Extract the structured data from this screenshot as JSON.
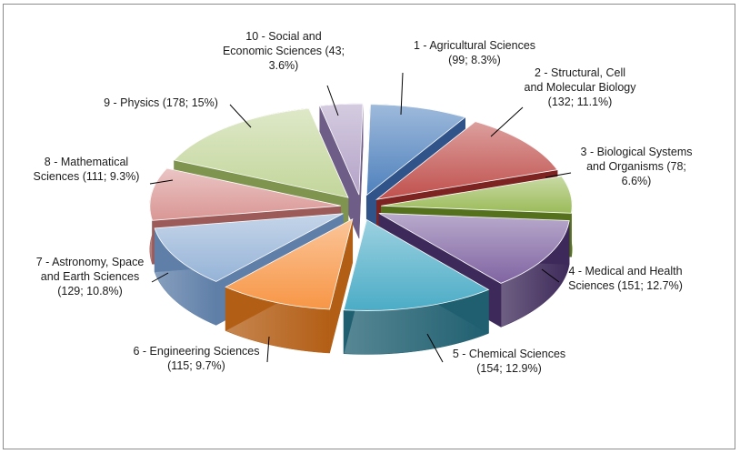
{
  "chart_data": {
    "type": "pie",
    "title": "",
    "style": "3D exploded pie",
    "slices": [
      {
        "label": "1 - Agricultural Sciences",
        "value": 99,
        "percent": "8.3%",
        "color": "#4f81bd",
        "side": "#30548a",
        "label_lines": [
          "1 - Agricultural Sciences",
          "(99; 8.3%)"
        ]
      },
      {
        "label": "2 - Structural, Cell and Molecular Biology",
        "value": 132,
        "percent": "11.1%",
        "color": "#c0504d",
        "side": "#7d2422",
        "label_lines": [
          "2 - Structural, Cell",
          "and Molecular Biology",
          "(132; 11.1%)"
        ]
      },
      {
        "label": "3 - Biological Systems and Organisms",
        "value": 78,
        "percent": "6.6%",
        "color": "#9bbb59",
        "side": "#55711e",
        "label_lines": [
          "3 - Biological Systems",
          "and Organisms  (78;",
          "6.6%)"
        ]
      },
      {
        "label": "4 - Medical and Health Sciences",
        "value": 151,
        "percent": "12.7%",
        "color": "#8064a2",
        "side": "#3e2a5a",
        "label_lines": [
          "4 - Medical and Health",
          "Sciences  (151; 12.7%)"
        ]
      },
      {
        "label": "5 - Chemical Sciences",
        "value": 154,
        "percent": "12.9%",
        "color": "#4bacc6",
        "side": "#1f5f70",
        "label_lines": [
          "5 - Chemical Sciences",
          "(154; 12.9%)"
        ]
      },
      {
        "label": "6 - Engineering Sciences",
        "value": 115,
        "percent": "9.7%",
        "color": "#f79646",
        "side": "#b35e15",
        "label_lines": [
          "6 - Engineering Sciences",
          "(115; 9.7%)"
        ]
      },
      {
        "label": "7 - Astronomy, Space and Earth Sciences",
        "value": 129,
        "percent": "10.8%",
        "color": "#95b3d7",
        "side": "#5f7fa8",
        "label_lines": [
          "7 - Astronomy, Space",
          "and Earth Sciences",
          "(129; 10.8%)"
        ]
      },
      {
        "label": "8 - Mathematical Sciences",
        "value": 111,
        "percent": "9.3%",
        "color": "#d99694",
        "side": "#9c5a58",
        "label_lines": [
          "8 - Mathematical",
          "Sciences  (111; 9.3%)"
        ]
      },
      {
        "label": "9 - Physics",
        "value": 178,
        "percent": "15%",
        "color": "#c3d69b",
        "side": "#7e944f",
        "label_lines": [
          "9 - Physics  (178; 15%)"
        ]
      },
      {
        "label": "10 - Social and Economic Sciences",
        "value": 43,
        "percent": "3.6%",
        "color": "#b3a2c7",
        "side": "#6e5d87",
        "label_lines": [
          "10 - Social and",
          "Economic Sciences  (43;",
          "3.6%)"
        ]
      }
    ],
    "legend": "none",
    "data_labels": "outside with leader lines"
  }
}
